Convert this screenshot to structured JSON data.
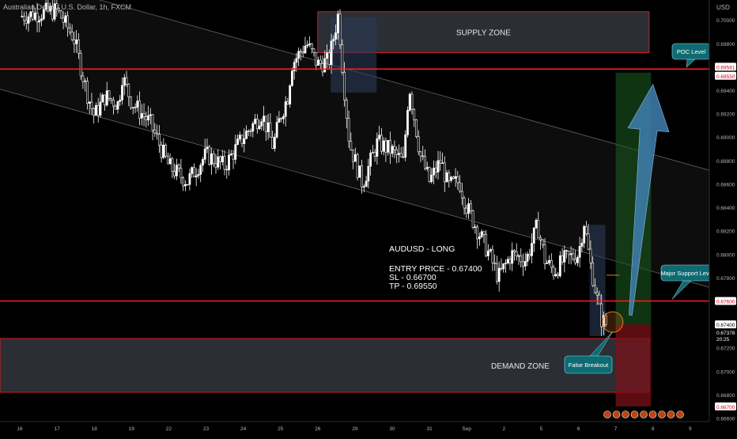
{
  "header": {
    "symbol_title": "Australian Dollar / U.S. Dollar, 1h, FXCM",
    "currency": "USD"
  },
  "chart_data": {
    "type": "candlestick",
    "x_ticks": [
      "16",
      "17",
      "18",
      "19",
      "22",
      "23",
      "24",
      "25",
      "26",
      "29",
      "30",
      "31",
      "Sep",
      "2",
      "5",
      "6",
      "7",
      "8",
      "9"
    ],
    "y_ticks": [
      0.7,
      0.698,
      0.696,
      0.694,
      0.692,
      0.69,
      0.688,
      0.686,
      0.684,
      0.682,
      0.68,
      0.678,
      0.676,
      0.674,
      0.672,
      0.67,
      0.668,
      0.666
    ],
    "y_tick_labels": [
      "0.70000",
      "0.69800",
      "0.69600",
      "0.69400",
      "0.69200",
      "0.69000",
      "0.68800",
      "0.68600",
      "0.68400",
      "0.68200",
      "0.68000",
      "0.67800",
      "0.67600",
      "0.67400",
      "0.67200",
      "0.67000",
      "0.66800",
      "0.66600"
    ],
    "ylim": [
      0.6657,
      0.7017
    ],
    "price_path": [
      [
        0,
        0.7003
      ],
      [
        1.0,
        0.7008
      ],
      [
        1.45,
        0.6985
      ],
      [
        1.8,
        0.6938
      ],
      [
        2.0,
        0.6918
      ],
      [
        2.3,
        0.6935
      ],
      [
        2.65,
        0.6928
      ],
      [
        2.75,
        0.6952
      ],
      [
        3.0,
        0.693
      ],
      [
        3.5,
        0.6912
      ],
      [
        4.0,
        0.6875
      ],
      [
        4.5,
        0.6862
      ],
      [
        5.0,
        0.6885
      ],
      [
        5.5,
        0.6875
      ],
      [
        6.0,
        0.69
      ],
      [
        6.5,
        0.692
      ],
      [
        6.8,
        0.6892
      ],
      [
        7.0,
        0.6918
      ],
      [
        7.2,
        0.6935
      ],
      [
        7.3,
        0.6962
      ],
      [
        7.7,
        0.698
      ],
      [
        8.0,
        0.6962
      ],
      [
        8.3,
        0.6965
      ],
      [
        8.55,
        0.7005
      ],
      [
        8.7,
        0.6945
      ],
      [
        8.85,
        0.6895
      ],
      [
        9.2,
        0.686
      ],
      [
        9.6,
        0.6895
      ],
      [
        10.0,
        0.6888
      ],
      [
        10.3,
        0.6878
      ],
      [
        10.45,
        0.6945
      ],
      [
        10.75,
        0.6885
      ],
      [
        11.0,
        0.6862
      ],
      [
        11.3,
        0.688
      ],
      [
        11.5,
        0.6858
      ],
      [
        11.8,
        0.6862
      ],
      [
        12.0,
        0.684
      ],
      [
        12.3,
        0.682
      ],
      [
        12.6,
        0.68
      ],
      [
        12.85,
        0.678
      ],
      [
        13.2,
        0.68
      ],
      [
        13.6,
        0.6795
      ],
      [
        13.9,
        0.6825
      ],
      [
        14.1,
        0.6795
      ],
      [
        14.35,
        0.6785
      ],
      [
        14.6,
        0.6795
      ],
      [
        15.0,
        0.68
      ],
      [
        15.15,
        0.6828
      ],
      [
        15.3,
        0.6795
      ],
      [
        15.45,
        0.677
      ],
      [
        15.6,
        0.6745
      ],
      [
        15.75,
        0.674
      ]
    ],
    "supply_zone": {
      "x": [
        8.0,
        16.9
      ],
      "y": [
        0.6972,
        0.7007
      ],
      "label": "SUPPLY ZONE"
    },
    "demand_zone": {
      "x": [
        -1,
        16.9
      ],
      "y": [
        0.6682,
        0.6728
      ],
      "label": "DEMAND ZONE"
    },
    "poc_level": 0.6958,
    "support_level": 0.676,
    "trade": {
      "entry": 0.674,
      "stop_loss": 0.667,
      "take_profit": 0.6955,
      "x_range": [
        16.0,
        16.95
      ],
      "arrow_from": [
        16.4,
        0.6748
      ],
      "arrow_to": [
        17.0,
        0.6945
      ]
    },
    "channel": {
      "upper": [
        [
          -1,
          0.7045
        ],
        [
          18.7,
          0.687
        ]
      ],
      "lower": [
        [
          -1,
          0.6945
        ],
        [
          18.7,
          0.677
        ]
      ]
    },
    "price_labels": {
      "poc_top": "0.69581",
      "poc_bottom": "0.69550",
      "support": "0.67600",
      "current": "0.67400",
      "current_alt": "0.67378",
      "countdown": "20:25",
      "stop_loss": "0.66700"
    },
    "annotations": {
      "info_lines": [
        "AUDUSD - LONG",
        "ENTRY PRICE - 0.67400",
        "SL - 0.66700",
        "TP - 0.69550"
      ],
      "poc_callout": "POC Level",
      "support_callout": "Major Support Level",
      "false_breakout": "False Breakout"
    },
    "colors": {
      "background": "#000000",
      "candle": "#ffffff",
      "level_line": "#ff1a1a",
      "zone_fill": "#3a3d47",
      "profit_zone": "#1b5e20",
      "loss_zone": "#7a1218",
      "arrow": "#3f7fb0",
      "callout": "#0e6b73",
      "axis_text": "#b2b5be"
    }
  }
}
